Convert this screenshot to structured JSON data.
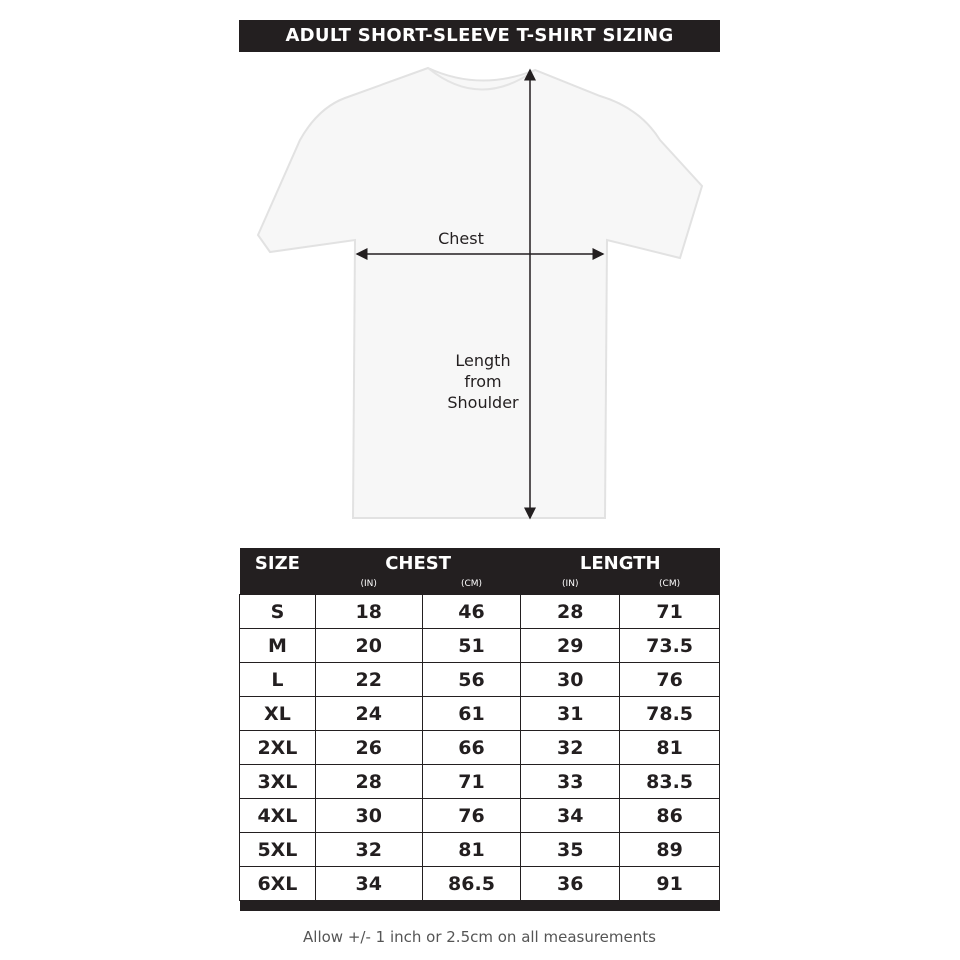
{
  "title": "ADULT SHORT-SLEEVE T-SHIRT SIZING",
  "diagram": {
    "chest_label": "Chest",
    "length_label_lines": [
      "Length",
      "from",
      "Shoulder"
    ]
  },
  "table": {
    "headers": {
      "size": "SIZE",
      "chest": "CHEST",
      "length": "LENGTH"
    },
    "units": [
      "(IN)",
      "(CM)",
      "(IN)",
      "(CM)"
    ],
    "rows": [
      [
        "S",
        "18",
        "46",
        "28",
        "71"
      ],
      [
        "M",
        "20",
        "51",
        "29",
        "73.5"
      ],
      [
        "L",
        "22",
        "56",
        "30",
        "76"
      ],
      [
        "XL",
        "24",
        "61",
        "31",
        "78.5"
      ],
      [
        "2XL",
        "26",
        "66",
        "32",
        "81"
      ],
      [
        "3XL",
        "28",
        "71",
        "33",
        "83.5"
      ],
      [
        "4XL",
        "30",
        "76",
        "34",
        "86"
      ],
      [
        "5XL",
        "32",
        "81",
        "35",
        "89"
      ],
      [
        "6XL",
        "34",
        "86.5",
        "36",
        "91"
      ]
    ]
  },
  "note": "Allow +/- 1 inch or 2.5cm on all measurements"
}
